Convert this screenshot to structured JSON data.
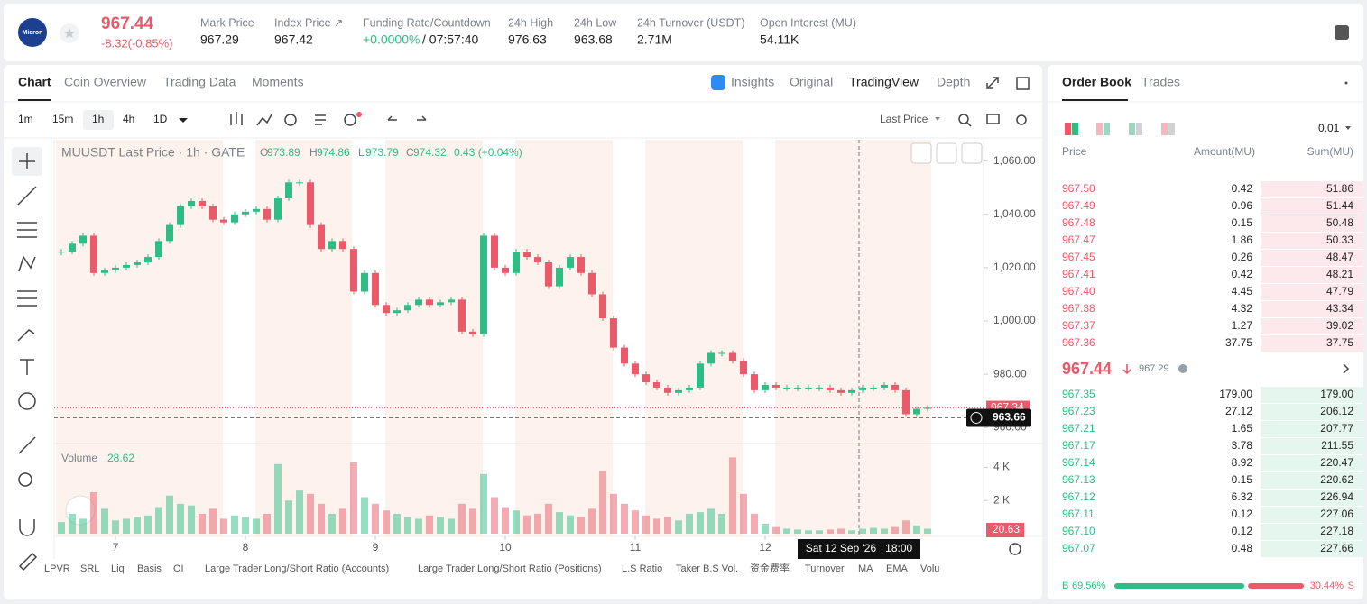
{
  "header": {
    "logo": "Micron",
    "price": "967.44",
    "change": "-8.32(-0.85%)",
    "stats": [
      {
        "label": "Mark Price",
        "value": "967.29"
      },
      {
        "label": "Index Price ↗",
        "value": "967.42"
      },
      {
        "label": "Funding Rate/Countdown",
        "value": "+0.0000%",
        "extra": "/ 07:57:40"
      },
      {
        "label": "24h High",
        "value": "976.63"
      },
      {
        "label": "24h Low",
        "value": "963.68"
      },
      {
        "label": "24h Turnover (USDT)",
        "value": "2.71M"
      },
      {
        "label": "Open Interest (MU)",
        "value": "54.11K"
      }
    ]
  },
  "chart_tabs": [
    "Chart",
    "Coin Overview",
    "Trading Data",
    "Moments"
  ],
  "view_tabs": [
    "Insights",
    "Original",
    "TradingView",
    "Depth"
  ],
  "intervals": [
    "1m",
    "15m",
    "1h",
    "4h",
    "1D"
  ],
  "price_mode": "Last Price",
  "indicators": [
    "LPVR",
    "SRL",
    "Liq",
    "Basis",
    "OI",
    "Large Trader Long/Short Ratio (Accounts)",
    "Large Trader Long/Short Ratio (Positions)",
    "L.S Ratio",
    "Taker B.S Vol.",
    "资金费率",
    "Turnover",
    "MA",
    "EMA",
    "Volu"
  ],
  "chart_data": {
    "type": "candlestick",
    "title": "MUUSDT Last Price · 1h · GATE",
    "ohlc_letters": [
      "O",
      "H",
      "L",
      "C"
    ],
    "ohlc": [
      "973.89",
      "974.86",
      "973.79",
      "974.32"
    ],
    "change": "0.43 (+0.04%)",
    "up_color": "#2ebd85",
    "down_color": "#ea5a6a",
    "closes": [
      1026,
      1029,
      1032,
      1018,
      1019,
      1020,
      1021,
      1022,
      1024,
      1030,
      1036,
      1043,
      1045,
      1043,
      1038,
      1037,
      1040,
      1041,
      1042,
      1038,
      1046,
      1052,
      1052,
      1036,
      1027,
      1030,
      1027,
      1011,
      1018,
      1006,
      1003,
      1004,
      1006,
      1008,
      1006,
      1007,
      1008,
      996,
      995,
      1032,
      1020,
      1018,
      1026,
      1024,
      1022,
      1013,
      1020,
      1024,
      1018,
      1010,
      1001,
      990,
      984,
      980,
      977,
      975,
      973,
      974,
      975,
      984,
      988,
      988,
      985,
      980,
      974,
      976,
      975,
      975,
      975,
      975,
      975,
      974,
      973,
      974,
      975,
      975,
      976,
      974,
      965,
      967,
      967.4
    ],
    "volumes": [
      700,
      1200,
      900,
      2500,
      1500,
      800,
      900,
      1000,
      1100,
      1600,
      2300,
      1800,
      1700,
      1200,
      1500,
      900,
      1100,
      1000,
      900,
      1200,
      4200,
      2000,
      2600,
      2400,
      1800,
      1200,
      1500,
      4300,
      2200,
      1800,
      1400,
      1200,
      1000,
      900,
      1100,
      1000,
      900,
      1800,
      1500,
      3600,
      2200,
      1600,
      1400,
      1100,
      1200,
      1800,
      1300,
      1100,
      1000,
      1500,
      3800,
      2400,
      1800,
      1400,
      1100,
      900,
      1000,
      800,
      1200,
      1300,
      1500,
      1200,
      4600,
      2400,
      1200,
      600,
      400,
      300,
      250,
      200,
      200,
      250,
      300,
      200,
      300,
      350,
      300,
      400,
      800,
      500,
      300
    ],
    "ylim": [
      954,
      1068
    ],
    "yticks": [
      {
        "value": 960,
        "label": "960.00"
      },
      {
        "value": 980,
        "label": "980.00"
      },
      {
        "value": 1000,
        "label": "1,000.00"
      },
      {
        "value": 1020,
        "label": "1,020.00"
      },
      {
        "value": 1040,
        "label": "1,040.00"
      },
      {
        "value": 1060,
        "label": "1,060.00"
      }
    ],
    "volume_label": "Volume",
    "volume_value": "28.62",
    "volume_last": "20.63",
    "volume_ylim": [
      0,
      5000
    ],
    "volume_yticks": [
      {
        "value": 2000,
        "label": "2 K"
      },
      {
        "value": 4000,
        "label": "4 K"
      }
    ],
    "xticks": [
      {
        "value": 5,
        "label": "7"
      },
      {
        "value": 17,
        "label": "8"
      },
      {
        "value": 29,
        "label": "9"
      },
      {
        "value": 41,
        "label": "10"
      },
      {
        "value": 53,
        "label": "11"
      },
      {
        "value": 65,
        "label": "12"
      }
    ],
    "last_price": 967.34,
    "last_price_label": "967.34",
    "crosshair_price": 963.66,
    "crosshair_price_label": "963.66",
    "crosshair_time": "Sat 12 Sep '26   18:00"
  },
  "order_book": {
    "tabs": [
      "Order Book",
      "Trades"
    ],
    "precision": "0.01",
    "columns": [
      "Price",
      "Amount(MU)",
      "Sum(MU)"
    ],
    "asks": [
      [
        "967.50",
        "0.42",
        "51.86"
      ],
      [
        "967.49",
        "0.96",
        "51.44"
      ],
      [
        "967.48",
        "0.15",
        "50.48"
      ],
      [
        "967.47",
        "1.86",
        "50.33"
      ],
      [
        "967.45",
        "0.26",
        "48.47"
      ],
      [
        "967.41",
        "0.42",
        "48.21"
      ],
      [
        "967.40",
        "4.45",
        "47.79"
      ],
      [
        "967.38",
        "4.32",
        "43.34"
      ],
      [
        "967.37",
        "1.27",
        "39.02"
      ],
      [
        "967.36",
        "37.75",
        "37.75"
      ]
    ],
    "mid_price": "967.44",
    "mid_mark": "967.29",
    "bids": [
      [
        "967.35",
        "179.00",
        "179.00"
      ],
      [
        "967.23",
        "27.12",
        "206.12"
      ],
      [
        "967.21",
        "1.65",
        "207.77"
      ],
      [
        "967.17",
        "3.78",
        "211.55"
      ],
      [
        "967.14",
        "8.92",
        "220.47"
      ],
      [
        "967.13",
        "0.15",
        "220.62"
      ],
      [
        "967.12",
        "6.32",
        "226.94"
      ],
      [
        "967.11",
        "0.12",
        "227.06"
      ],
      [
        "967.10",
        "0.12",
        "227.18"
      ],
      [
        "967.07",
        "0.48",
        "227.66"
      ]
    ],
    "buy_letter": "B",
    "buy": 69.56,
    "buy_label": "69.56%",
    "sell": 30.44,
    "sell_label": "30.44%",
    "sell_letter": "S"
  }
}
